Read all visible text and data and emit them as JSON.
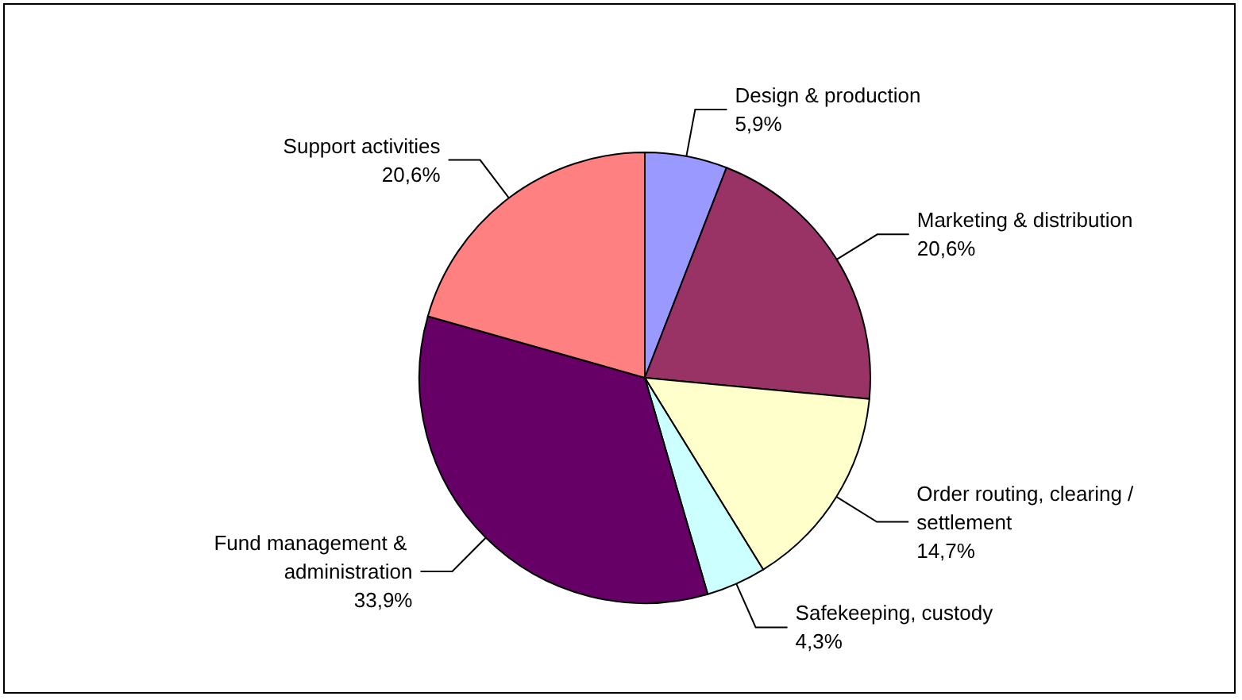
{
  "chart_data": {
    "type": "pie",
    "categories": [
      "Design & production",
      "Marketing & distribution",
      "Order routing, clearing / settlement",
      "Safekeeping, custody",
      "Fund management & administration",
      "Support activities"
    ],
    "values": [
      5.9,
      20.6,
      14.7,
      4.3,
      33.9,
      20.6
    ],
    "value_labels": [
      "5,9%",
      "20,6%",
      "14,7%",
      "4,3%",
      "33,9%",
      "20,6%"
    ],
    "colors": [
      "#9999ff",
      "#993366",
      "#ffffcc",
      "#ccffff",
      "#660066",
      "#ff8080"
    ],
    "legend": false
  }
}
